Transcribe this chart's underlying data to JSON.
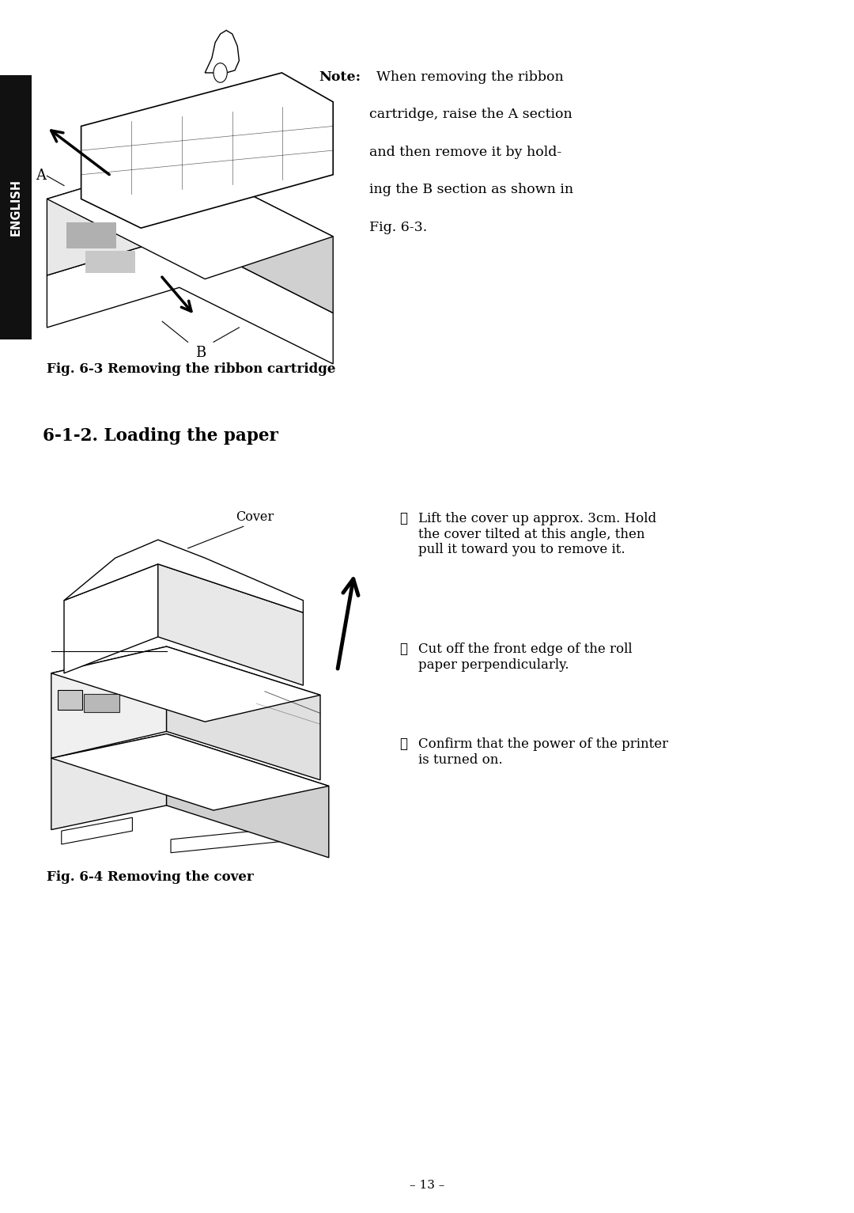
{
  "bg_color": "#ffffff",
  "page_width": 10.8,
  "page_height": 15.33,
  "sidebar_color": "#111111",
  "sidebar_text": "ENGLISH",
  "note_bold": "Note:",
  "note_rest_line1": "When removing the ribbon",
  "note_rest_line2": "cartridge, raise the A section",
  "note_rest_line3": "and then remove it by hold-",
  "note_rest_line4": "ing the B section as shown in",
  "note_rest_line5": "Fig. 6-3.",
  "fig3_caption": "Fig. 6-3 Removing the ribbon cartridge",
  "section_title": "6-1-2. Loading the paper",
  "cover_label": "Cover",
  "step1_num": "①",
  "step1_text": "Lift the cover up approx. 3cm. Hold\nthe cover tilted at this angle, then\npull it toward you to remove it.",
  "step2_num": "②",
  "step2_text": "Cut off the front edge of the roll\npaper perpendicularly.",
  "step3_num": "③",
  "step3_text": "Confirm that the power of the printer\nis turned on.",
  "fig4_caption": "Fig. 6-4 Removing the cover",
  "page_num": "– 13 –",
  "label_a": "A",
  "label_b": "B",
  "text_color": "#000000",
  "font_size_note": 12.5,
  "font_size_caption": 12.0,
  "font_size_section": 15.5,
  "font_size_steps": 12.0,
  "font_size_page": 11,
  "font_size_sidebar": 10.5
}
